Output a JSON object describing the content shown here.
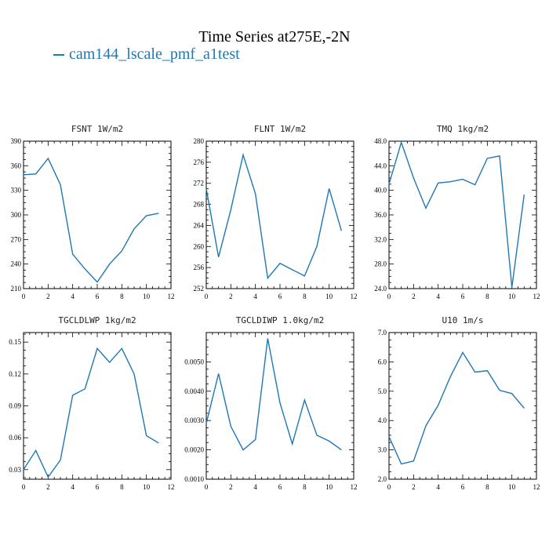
{
  "figure": {
    "title": "Time Series at275E,-2N",
    "legend_label": "cam144_lscale_pmf_a1test",
    "series_color": "#1f77b4"
  },
  "chart_data": [
    {
      "type": "line",
      "title": "FSNT   1W/m2",
      "x": [
        0,
        1,
        2,
        3,
        4,
        5,
        6,
        7,
        8,
        9,
        10,
        11
      ],
      "series": [
        {
          "name": "cam144_lscale_pmf_a1test",
          "values": [
            349,
            350,
            369,
            337,
            252,
            234,
            218,
            240,
            256,
            283,
            299,
            302
          ]
        }
      ],
      "xlim": [
        0,
        12
      ],
      "ylim": [
        210,
        390
      ],
      "xticks": [
        "0",
        "2",
        "4",
        "6",
        "8",
        "10",
        "12"
      ],
      "yticks": [
        "210",
        "240",
        "270",
        "300",
        "330",
        "360",
        "390"
      ]
    },
    {
      "type": "line",
      "title": "FLNT   1W/m2",
      "x": [
        0,
        1,
        2,
        3,
        4,
        5,
        6,
        7,
        8,
        9,
        10,
        11
      ],
      "series": [
        {
          "name": "cam144_lscale_pmf_a1test",
          "values": [
            271,
            258,
            267,
            277.4,
            270,
            254,
            256.8,
            255.6,
            254.4,
            260,
            271,
            263
          ]
        }
      ],
      "xlim": [
        0,
        12
      ],
      "ylim": [
        252,
        280
      ],
      "xticks": [
        "0",
        "2",
        "4",
        "6",
        "8",
        "10",
        "12"
      ],
      "yticks": [
        "252",
        "256",
        "260",
        "264",
        "268",
        "272",
        "276",
        "280"
      ]
    },
    {
      "type": "line",
      "title": "TMQ   1kg/m2",
      "x": [
        0,
        1,
        2,
        3,
        4,
        5,
        6,
        7,
        8,
        9,
        10,
        11
      ],
      "series": [
        {
          "name": "cam144_lscale_pmf_a1test",
          "values": [
            41,
            47.8,
            42,
            37.1,
            41.2,
            41.4,
            41.8,
            40.9,
            45.2,
            45.6,
            24.2,
            39.3
          ]
        }
      ],
      "xlim": [
        0,
        12
      ],
      "ylim": [
        24,
        48
      ],
      "xticks": [
        "0",
        "2",
        "4",
        "6",
        "8",
        "10",
        "12"
      ],
      "yticks": [
        "24.0",
        "28.0",
        "32.0",
        "36.0",
        "40.0",
        "44.0",
        "48.0"
      ]
    },
    {
      "type": "line",
      "title": "TGCLDLWP   1kg/m2",
      "x": [
        0,
        1,
        2,
        3,
        4,
        5,
        6,
        7,
        8,
        9,
        10,
        11
      ],
      "series": [
        {
          "name": "cam144_lscale_pmf_a1test",
          "values": [
            0.03,
            0.048,
            0.023,
            0.039,
            0.1,
            0.106,
            0.144,
            0.131,
            0.144,
            0.12,
            0.062,
            0.055
          ]
        }
      ],
      "xlim": [
        0,
        12
      ],
      "ylim": [
        0.021,
        0.159
      ],
      "xticks": [
        "0",
        "2",
        "4",
        "6",
        "8",
        "10",
        "12"
      ],
      "yticks": [
        "0.03",
        "0.06",
        "0.09",
        "0.12",
        "0.15"
      ]
    },
    {
      "type": "line",
      "title": "TGCLDIWP   1.0kg/m2",
      "x": [
        0,
        1,
        2,
        3,
        4,
        5,
        6,
        7,
        8,
        9,
        10,
        11
      ],
      "series": [
        {
          "name": "cam144_lscale_pmf_a1test",
          "values": [
            0.0029,
            0.0046,
            0.0028,
            0.002,
            0.00235,
            0.0058,
            0.0036,
            0.0022,
            0.0037,
            0.0025,
            0.0023,
            0.002
          ]
        }
      ],
      "xlim": [
        0,
        12
      ],
      "ylim": [
        0.001,
        0.006
      ],
      "xticks": [
        "0",
        "2",
        "4",
        "6",
        "8",
        "10",
        "12"
      ],
      "yticks": [
        "0.0010",
        "0.0020",
        "0.0030",
        "0.0040",
        "0.0050"
      ]
    },
    {
      "type": "line",
      "title": "U10   1m/s",
      "x": [
        0,
        1,
        2,
        3,
        4,
        5,
        6,
        7,
        8,
        9,
        10,
        11
      ],
      "series": [
        {
          "name": "cam144_lscale_pmf_a1test",
          "values": [
            3.45,
            2.52,
            2.62,
            3.82,
            4.52,
            5.5,
            6.32,
            5.65,
            5.7,
            5.03,
            4.92,
            4.42
          ]
        }
      ],
      "xlim": [
        0,
        12
      ],
      "ylim": [
        2,
        7
      ],
      "xticks": [
        "0",
        "2",
        "4",
        "6",
        "8",
        "10",
        "12"
      ],
      "yticks": [
        "2.0",
        "3.0",
        "4.0",
        "5.0",
        "6.0",
        "7.0"
      ]
    }
  ]
}
